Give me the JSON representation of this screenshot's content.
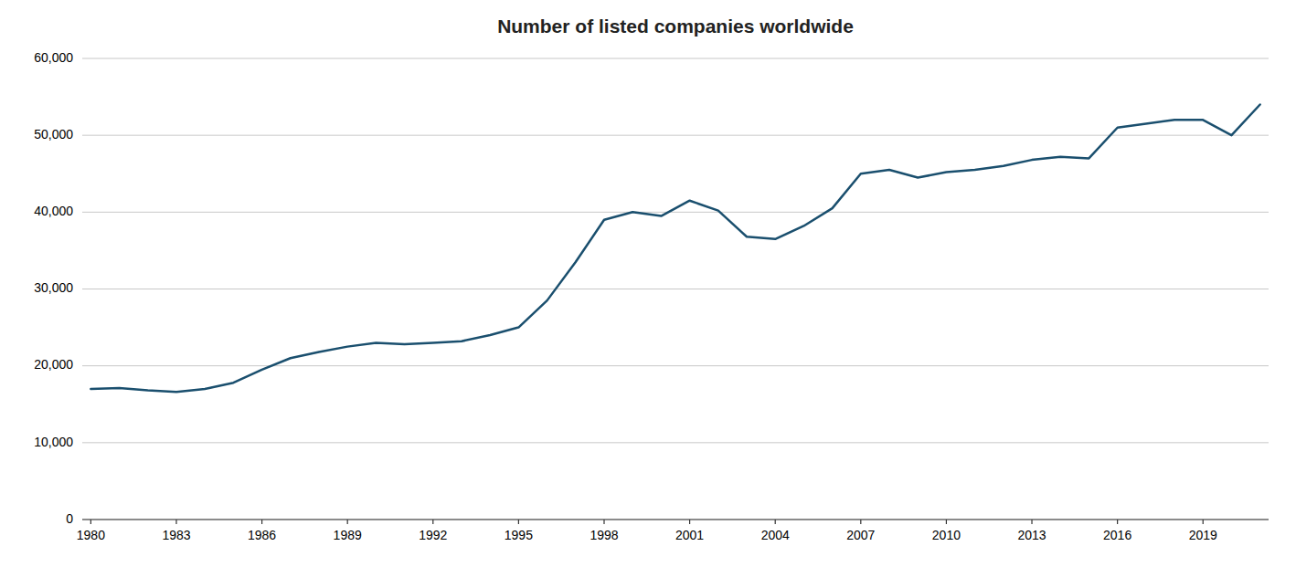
{
  "chart_data": {
    "type": "line",
    "title": "Number of listed companies worldwide",
    "color": "#1a4f6e",
    "grid": true,
    "x": [
      1980,
      1981,
      1982,
      1983,
      1984,
      1985,
      1986,
      1987,
      1988,
      1989,
      1990,
      1991,
      1992,
      1993,
      1994,
      1995,
      1996,
      1997,
      1998,
      1999,
      2000,
      2001,
      2002,
      2003,
      2004,
      2005,
      2006,
      2007,
      2008,
      2009,
      2010,
      2011,
      2012,
      2013,
      2014,
      2015,
      2016,
      2017,
      2018,
      2019,
      2020,
      2021
    ],
    "values": [
      17000,
      17100,
      16800,
      16600,
      17000,
      17800,
      19500,
      21000,
      21800,
      22500,
      23000,
      22800,
      23000,
      23200,
      24000,
      25000,
      28500,
      33500,
      39000,
      40000,
      39500,
      41500,
      40200,
      36800,
      36500,
      38200,
      40500,
      45000,
      45500,
      44500,
      45200,
      45500,
      46000,
      46800,
      47200,
      47000,
      51000,
      51500,
      52000,
      52000,
      50000,
      54000
    ],
    "xlim": [
      1979.7,
      2021.3
    ],
    "xticks": [
      1980,
      1983,
      1986,
      1989,
      1992,
      1995,
      1998,
      2001,
      2004,
      2007,
      2010,
      2013,
      2016,
      2019
    ],
    "ylim": [
      0,
      60000
    ],
    "yticks": [
      0,
      {
        "value": 10000,
        "label": "10,000"
      },
      {
        "value": 20000,
        "label": "20,000"
      },
      {
        "value": 30000,
        "label": "30,000"
      },
      {
        "value": 40000,
        "label": "40,000"
      },
      {
        "value": 50000,
        "label": "50,000"
      },
      {
        "value": 60000,
        "label": "60,000"
      }
    ]
  }
}
